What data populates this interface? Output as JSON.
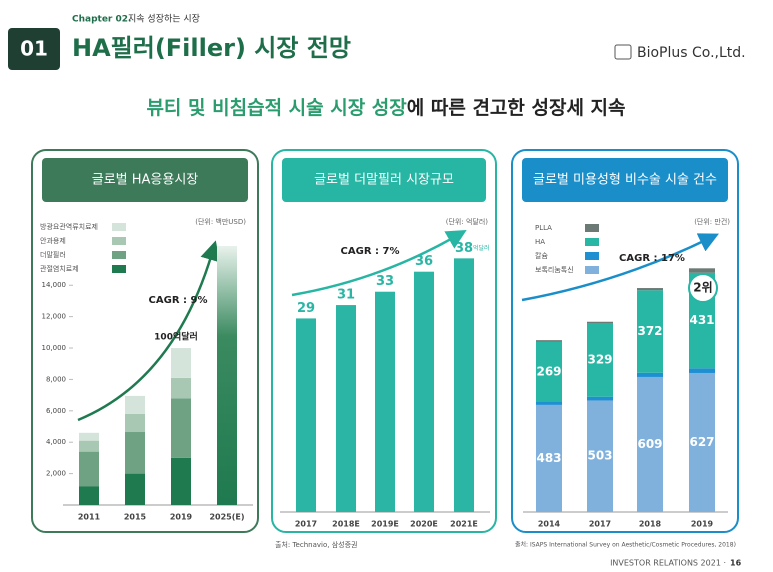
{
  "header": {
    "chapter": "Chapter 02.",
    "chapter_title": "지속 성장하는 시장",
    "number": "01",
    "title": "HA필러(Filler) 시장 전망",
    "logo": "BioPlus Co.,Ltd."
  },
  "headline": {
    "highlight": "뷰티 및 비침습적 시술 시장 성장",
    "rest": "에 따른 견고한 성장세 지속"
  },
  "chart_data": [
    {
      "type": "stacked_bar",
      "title": "글로벌 HA응용시장",
      "unit": "(단위: 백만USD)",
      "categories": [
        "2011",
        "2015",
        "2019",
        "2025(E)"
      ],
      "series": [
        {
          "name": "관절염치료제",
          "color": "#1f7a4f",
          "values": [
            1200,
            2000,
            3000,
            null
          ]
        },
        {
          "name": "더말필러",
          "color": "#6fa283",
          "values": [
            2200,
            2650,
            3800,
            null
          ]
        },
        {
          "name": "안과용제",
          "color": "#a9c8b4",
          "values": [
            700,
            1150,
            1300,
            null
          ]
        },
        {
          "name": "방광요관역류치료제",
          "color": "#d5e4da",
          "values": [
            500,
            1150,
            1900,
            null
          ]
        }
      ],
      "estimate_values": [
        null,
        null,
        null,
        16500
      ],
      "ylim": [
        0,
        16500
      ],
      "yticks": [
        {
          "value": 2000,
          "label": "2,000"
        },
        {
          "value": 4000,
          "label": "4,000"
        },
        {
          "value": 6000,
          "label": "6,000"
        },
        {
          "value": 8000,
          "label": "8,000"
        },
        {
          "value": 10000,
          "label": "10,000"
        },
        {
          "value": 12000,
          "label": "12,000"
        },
        {
          "value": 14000,
          "label": "14,000"
        }
      ],
      "annotations": [
        "CAGR : 9%",
        "100억달러"
      ]
    },
    {
      "type": "bar",
      "title": "글로벌 더말필러 시장규모",
      "unit": "(단위: 억달러)",
      "color": "#2ab5a5",
      "categories": [
        "2017",
        "2018E",
        "2019E",
        "2020E",
        "2021E"
      ],
      "values": [
        29,
        31,
        33,
        36,
        38
      ],
      "value_unit": "억달러",
      "ylim": [
        0,
        40
      ],
      "annotations": [
        "CAGR : 7%"
      ]
    },
    {
      "type": "stacked_bar",
      "title": "글로벌 미용성형 비수술 시술 건수",
      "unit": "(단위: 만건)",
      "categories": [
        "2014",
        "2017",
        "2018",
        "2019"
      ],
      "series": [
        {
          "name": "보톡리눔톡신",
          "color": "#80b1dc",
          "values": [
            483,
            503,
            609,
            627
          ],
          "show_labels": true
        },
        {
          "name": "칼슘",
          "color": "#1e8fd1",
          "values": [
            15,
            17,
            19,
            21
          ]
        },
        {
          "name": "HA",
          "color": "#28b7a5",
          "values": [
            269,
            329,
            372,
            431
          ],
          "show_labels": true
        },
        {
          "name": "PLLA",
          "color": "#6c7a75",
          "values": [
            8,
            9,
            10,
            20
          ]
        }
      ],
      "ylim": [
        0,
        1150
      ],
      "annotations": [
        "CAGR : 17%",
        "2위"
      ]
    }
  ],
  "sources": [
    "출처: Technavio, 삼성증권",
    "출처: ISAPS International Survey on Aesthetic/Cosmetic Procedures, 2018)"
  ],
  "footer": {
    "left": "INVESTOR RELATIONS 2021 ·",
    "page": "16"
  }
}
